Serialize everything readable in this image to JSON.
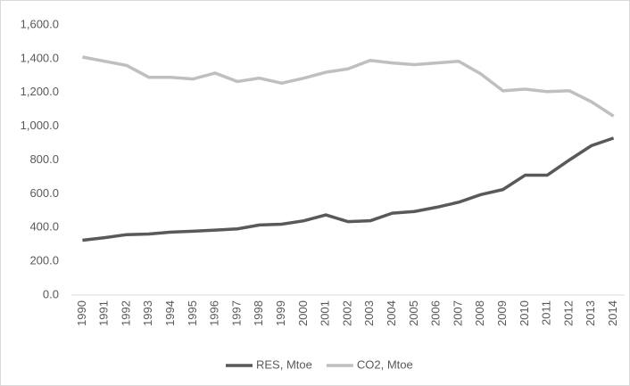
{
  "chart_data": {
    "type": "line",
    "categories": [
      "1990",
      "1991",
      "1992",
      "1993",
      "1994",
      "1995",
      "1996",
      "1997",
      "1998",
      "1999",
      "2000",
      "2001",
      "2002",
      "2003",
      "2004",
      "2005",
      "2006",
      "2007",
      "2008",
      "2009",
      "2010",
      "2011",
      "2012",
      "2013",
      "2014"
    ],
    "series": [
      {
        "name": "RES, Mtoe",
        "color": "#595959",
        "values": [
          325,
          340,
          358,
          362,
          373,
          378,
          385,
          392,
          415,
          420,
          440,
          475,
          435,
          440,
          485,
          495,
          520,
          550,
          595,
          625,
          710,
          710,
          800,
          885,
          930
        ]
      },
      {
        "name": "CO2, Mtoe",
        "color": "#bfbfbf",
        "values": [
          1410,
          1385,
          1360,
          1290,
          1290,
          1280,
          1315,
          1265,
          1285,
          1255,
          1285,
          1320,
          1340,
          1390,
          1375,
          1365,
          1375,
          1385,
          1310,
          1210,
          1220,
          1205,
          1210,
          1145,
          1060
        ]
      }
    ],
    "ylim": [
      0,
      1600
    ],
    "yticks": [
      {
        "value": 0,
        "label": "0.0"
      },
      {
        "value": 200,
        "label": "200.0"
      },
      {
        "value": 400,
        "label": "400.0"
      },
      {
        "value": 600,
        "label": "600.0"
      },
      {
        "value": 800,
        "label": "800.0"
      },
      {
        "value": 1000,
        "label": "1,000.0"
      },
      {
        "value": 1200,
        "label": "1,200.0"
      },
      {
        "value": 1400,
        "label": "1,400.0"
      },
      {
        "value": 1600,
        "label": "1,600.0"
      }
    ],
    "grid": false,
    "legend": "bottom"
  }
}
